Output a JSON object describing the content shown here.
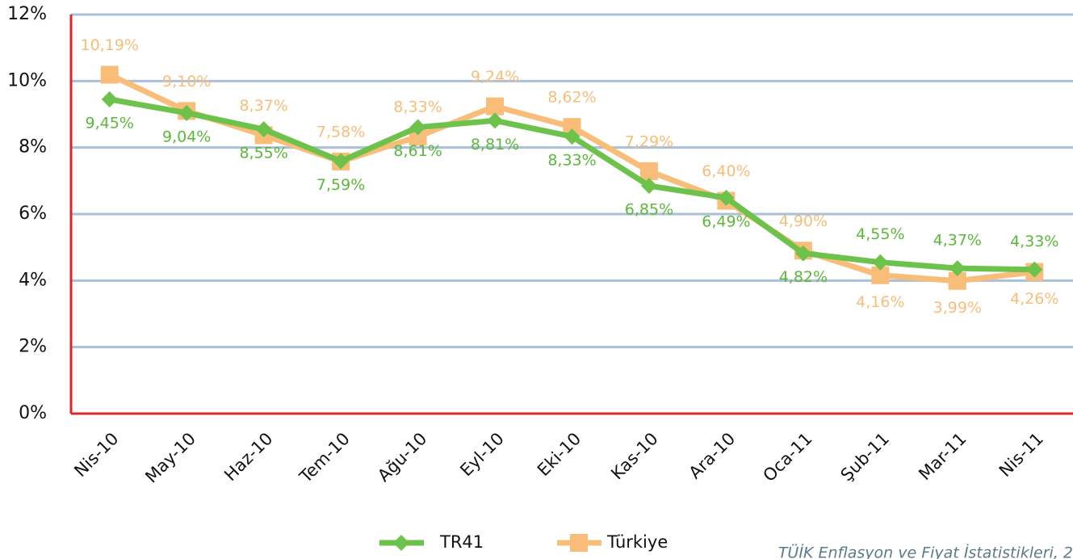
{
  "chart_data": {
    "type": "line",
    "categories": [
      "Nis-10",
      "May-10",
      "Haz-10",
      "Tem-10",
      "Ağu-10",
      "Eyl-10",
      "Eki-10",
      "Kas-10",
      "Ara-10",
      "Oca-11",
      "Şub-11",
      "Mar-11",
      "Nis-11"
    ],
    "series": [
      {
        "name": "TR41",
        "color": "#6cc24a",
        "marker": "diamond",
        "values": [
          9.45,
          9.04,
          8.55,
          7.59,
          8.61,
          8.81,
          8.33,
          6.85,
          6.49,
          4.82,
          4.55,
          4.37,
          4.33
        ],
        "value_labels": [
          "9,45%",
          "9,04%",
          "8,55%",
          "7,59%",
          "8,61%",
          "8,81%",
          "8,33%",
          "6,85%",
          "6,49%",
          "4,82%",
          "4,55%",
          "4,37%",
          "4,33%"
        ]
      },
      {
        "name": "Türkiye",
        "color": "#f9bd7a",
        "marker": "square",
        "values": [
          10.19,
          9.1,
          8.37,
          7.58,
          8.33,
          9.24,
          8.62,
          7.29,
          6.4,
          4.9,
          4.16,
          3.99,
          4.26
        ],
        "value_labels": [
          "10,19%",
          "9,10%",
          "8,37%",
          "7,58%",
          "8,33%",
          "9,24%",
          "8,62%",
          "7,29%",
          "6,40%",
          "4,90%",
          "4,16%",
          "3,99%",
          "4,26%"
        ]
      }
    ],
    "ylim": [
      0,
      12
    ],
    "yticks": [
      {
        "value": 0,
        "label": "0%"
      },
      {
        "value": 2,
        "label": "2%"
      },
      {
        "value": 4,
        "label": "4%"
      },
      {
        "value": 6,
        "label": "6%"
      },
      {
        "value": 8,
        "label": "8%"
      },
      {
        "value": 10,
        "label": "10%"
      },
      {
        "value": 12,
        "label": "12%"
      }
    ],
    "grid": true,
    "legend": "bottom",
    "source": "TÜİK Enflasyon ve Fiyat İstatistikleri, 2"
  }
}
